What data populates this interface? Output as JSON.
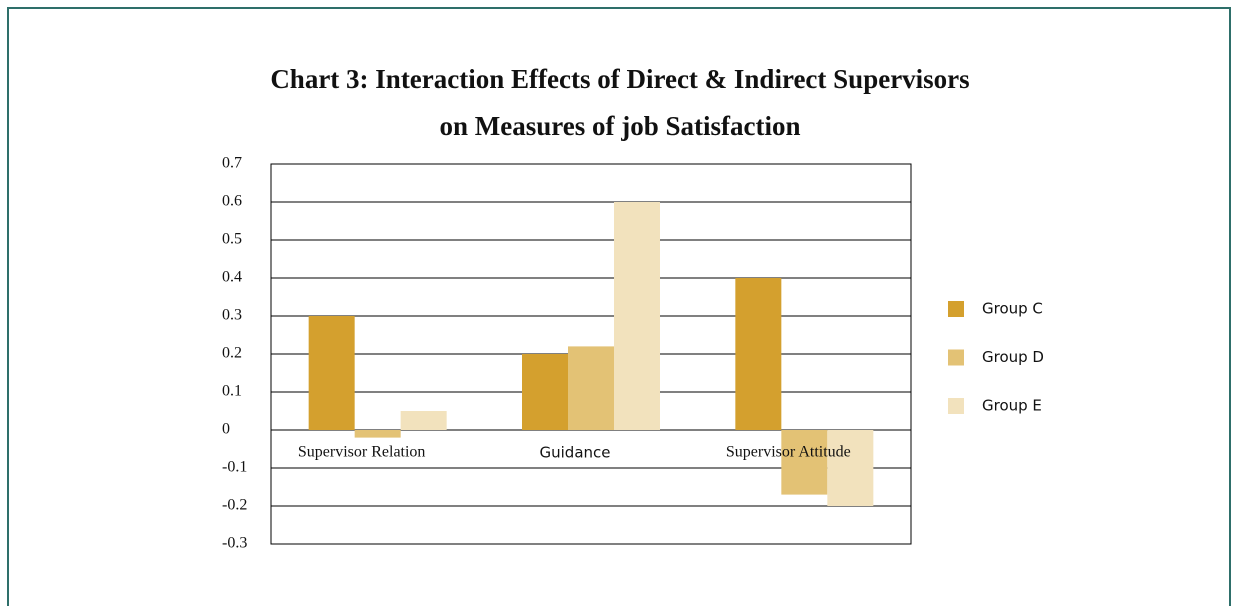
{
  "chart_data": {
    "type": "bar",
    "title": "Chart 3: Interaction Effects of Direct & Indirect Supervisors on Measures of job Satisfaction",
    "categories": [
      "Supervisor Relation",
      "Guidance",
      "Supervisor Attitude"
    ],
    "series": [
      {
        "name": "Group C",
        "color": "#d4a02e",
        "values": [
          0.3,
          0.2,
          0.4
        ]
      },
      {
        "name": "Group D",
        "color": "#e3c275",
        "values": [
          -0.02,
          0.22,
          -0.17
        ]
      },
      {
        "name": "Group E",
        "color": "#f2e2bd",
        "values": [
          0.05,
          0.6,
          -0.2
        ]
      }
    ],
    "ylim": [
      -0.3,
      0.7
    ],
    "yticks": [
      -0.3,
      -0.2,
      -0.1,
      0,
      0.1,
      0.2,
      0.3,
      0.4,
      0.5,
      0.6,
      0.7
    ],
    "grid": true,
    "legend": "right"
  }
}
